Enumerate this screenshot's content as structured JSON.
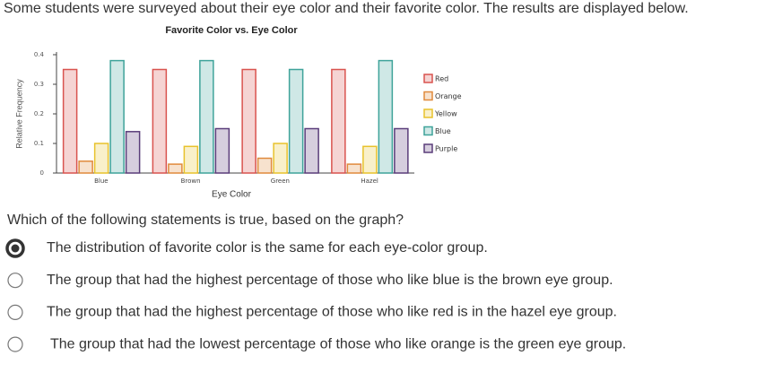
{
  "header": {
    "intro": "Some students were surveyed about their eye color and their favorite color. The results are displayed below."
  },
  "chart_data": {
    "type": "bar",
    "title": "Favorite Color vs. Eye Color",
    "x_label": "Eye Color",
    "y_label": "Relative Frequency",
    "categories": [
      "Blue",
      "Brown",
      "Green",
      "Hazel"
    ],
    "series": [
      {
        "name": "Red",
        "color": "#d9534f",
        "values": [
          0.35,
          0.35,
          0.35,
          0.35
        ]
      },
      {
        "name": "Orange",
        "color": "#e08a3c",
        "values": [
          0.04,
          0.03,
          0.05,
          0.03
        ]
      },
      {
        "name": "Yellow",
        "color": "#e8c22c",
        "values": [
          0.1,
          0.09,
          0.1,
          0.09
        ]
      },
      {
        "name": "Blue",
        "color": "#3fa39a",
        "values": [
          0.38,
          0.38,
          0.35,
          0.38
        ]
      },
      {
        "name": "Purple",
        "color": "#5a3d7a",
        "values": [
          0.14,
          0.15,
          0.15,
          0.15
        ]
      }
    ],
    "ylim": [
      0,
      0.4
    ],
    "yticks": [
      0,
      0.1,
      0.2,
      0.3,
      0.4
    ]
  },
  "question": {
    "prompt": "Which of the following statements is true, based on the graph?",
    "selected": 0,
    "options": [
      "The distribution of favorite color is the same for each eye-color group.",
      "The group that had the highest percentage of those who like blue is the brown eye group.",
      "The group that had the highest percentage of those who like red is in the hazel eye group.",
      "The group that had the lowest percentage of those who like orange is the green eye group."
    ]
  }
}
